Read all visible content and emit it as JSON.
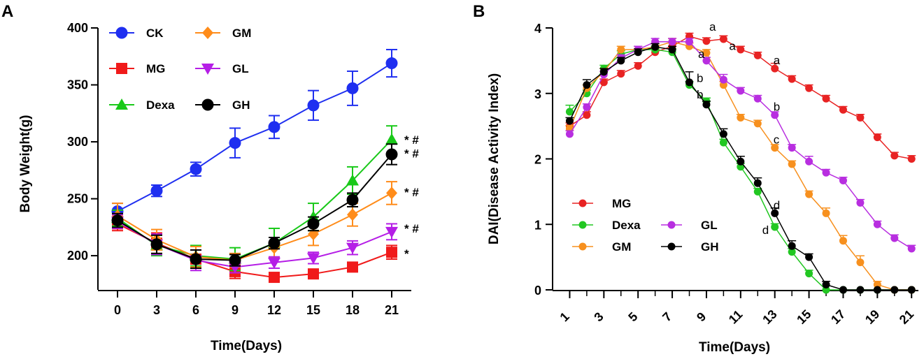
{
  "chart_data": [
    {
      "panel": "A",
      "type": "line",
      "xlabel": "Time(Days)",
      "ylabel": "Body Weight(g)",
      "x": [
        0,
        3,
        6,
        9,
        12,
        15,
        18,
        21
      ],
      "xticks": [
        0,
        3,
        6,
        9,
        12,
        15,
        18,
        21
      ],
      "xlim": [
        -1.5,
        22.5
      ],
      "ylim": [
        170,
        400
      ],
      "yticks": [
        200,
        250,
        300,
        350,
        400
      ],
      "legend": "top-left",
      "series": [
        {
          "name": "CK",
          "color": "#1f2ff0",
          "marker": "circle",
          "values": [
            239,
            257,
            276,
            299,
            313,
            332,
            347,
            369
          ],
          "errors": [
            7,
            5,
            6,
            13,
            10,
            13,
            15,
            12
          ]
        },
        {
          "name": "MG",
          "color": "#f01a1a",
          "marker": "square",
          "values": [
            228,
            211,
            197,
            186,
            181,
            184,
            190,
            203
          ],
          "errors": [
            6,
            9,
            8,
            6,
            4,
            4,
            4,
            6
          ]
        },
        {
          "name": "Dexa",
          "color": "#19c919",
          "marker": "triangle-up",
          "values": [
            233,
            209,
            200,
            197,
            211,
            234,
            266,
            302
          ],
          "errors": [
            7,
            9,
            9,
            10,
            13,
            12,
            12,
            12
          ]
        },
        {
          "name": "GM",
          "color": "#ff8c1a",
          "marker": "diamond",
          "values": [
            235,
            214,
            199,
            196,
            207,
            219,
            236,
            255
          ],
          "errors": [
            11,
            9,
            9,
            6,
            9,
            10,
            10,
            10
          ]
        },
        {
          "name": "GL",
          "color": "#b51ee6",
          "marker": "triangle-down",
          "values": [
            230,
            210,
            196,
            190,
            194,
            198,
            207,
            221
          ],
          "errors": [
            6,
            9,
            9,
            5,
            5,
            5,
            6,
            7
          ]
        },
        {
          "name": "GH",
          "color": "#000000",
          "marker": "circle",
          "values": [
            231,
            210,
            197,
            196,
            211,
            228,
            249,
            289
          ],
          "errors": [
            6,
            8,
            8,
            5,
            5,
            6,
            6,
            9
          ]
        }
      ],
      "annotations": [
        {
          "x": 21,
          "y": 302,
          "text": "* #"
        },
        {
          "x": 21,
          "y": 290,
          "text": "* #"
        },
        {
          "x": 21,
          "y": 256,
          "text": "* #"
        },
        {
          "x": 21,
          "y": 224,
          "text": "* #"
        },
        {
          "x": 21,
          "y": 202,
          "text": "*"
        }
      ]
    },
    {
      "panel": "B",
      "type": "line",
      "xlabel": "Time(Days)",
      "ylabel": "DAI(Disease Activity Index)",
      "x": [
        1,
        2,
        3,
        4,
        5,
        6,
        7,
        8,
        9,
        10,
        11,
        12,
        13,
        14,
        15,
        16,
        17,
        18,
        19,
        20,
        21
      ],
      "xticks": [
        1,
        3,
        5,
        7,
        9,
        11,
        13,
        15,
        17,
        19,
        21
      ],
      "xlim": [
        0,
        21.4
      ],
      "ylim": [
        0,
        4
      ],
      "yticks": [
        0,
        1,
        2,
        3,
        4
      ],
      "legend": "bottom-left",
      "series": [
        {
          "name": "MG",
          "color": "#e82323",
          "values": [
            2.5,
            2.67,
            3.17,
            3.3,
            3.42,
            3.63,
            3.72,
            3.87,
            3.8,
            3.83,
            3.67,
            3.58,
            3.38,
            3.22,
            3.08,
            2.92,
            2.75,
            2.63,
            2.33,
            2.05,
            2.0
          ],
          "errors": [
            0.05,
            0.05,
            0.05,
            0.05,
            0.05,
            0.05,
            0.05,
            0.05,
            0.05,
            0.05,
            0.05,
            0.05,
            0.08,
            0.05,
            0.05,
            0.05,
            0.05,
            0.05,
            0.05,
            0.05,
            0.05
          ]
        },
        {
          "name": "Dexa",
          "color": "#22c722",
          "values": [
            2.72,
            3.0,
            3.38,
            3.6,
            3.67,
            3.67,
            3.63,
            3.13,
            2.88,
            2.25,
            1.88,
            1.5,
            0.96,
            0.58,
            0.25,
            0.0,
            0.0,
            0.0,
            0.0,
            0.0,
            0.0
          ],
          "errors": [
            0.1,
            0.05,
            0.05,
            0.05,
            0.05,
            0.05,
            0.05,
            0.05,
            0.05,
            0.05,
            0.05,
            0.05,
            0.05,
            0.05,
            0.05,
            0.0,
            0.0,
            0.0,
            0.0,
            0.0,
            0.0
          ]
        },
        {
          "name": "GM",
          "color": "#f7901e",
          "values": [
            2.46,
            3.08,
            3.33,
            3.67,
            3.67,
            3.71,
            3.79,
            3.72,
            3.62,
            3.13,
            2.63,
            2.54,
            2.17,
            1.92,
            1.46,
            1.17,
            0.75,
            0.42,
            0.08,
            0.0,
            0.0
          ],
          "errors": [
            0.05,
            0.05,
            0.05,
            0.05,
            0.05,
            0.05,
            0.05,
            0.05,
            0.05,
            0.05,
            0.05,
            0.05,
            0.05,
            0.05,
            0.05,
            0.08,
            0.08,
            0.1,
            0.05,
            0.0,
            0.0
          ]
        },
        {
          "name": "GL",
          "color": "#b82ee0",
          "values": [
            2.38,
            2.79,
            3.29,
            3.54,
            3.67,
            3.79,
            3.79,
            3.79,
            3.5,
            3.21,
            3.04,
            2.92,
            2.67,
            2.17,
            1.96,
            1.79,
            1.67,
            1.33,
            1.0,
            0.79,
            0.63
          ],
          "errors": [
            0.05,
            0.05,
            0.05,
            0.05,
            0.05,
            0.05,
            0.05,
            0.05,
            0.05,
            0.08,
            0.05,
            0.05,
            0.05,
            0.05,
            0.08,
            0.05,
            0.05,
            0.05,
            0.05,
            0.05,
            0.05
          ]
        },
        {
          "name": "GH",
          "color": "#000000",
          "values": [
            2.58,
            3.13,
            3.33,
            3.5,
            3.63,
            3.71,
            3.67,
            3.17,
            2.83,
            2.38,
            1.96,
            1.63,
            1.17,
            0.67,
            0.5,
            0.08,
            0.0,
            0.0,
            0.0,
            0.0,
            0.0
          ],
          "errors": [
            0.05,
            0.08,
            0.05,
            0.05,
            0.05,
            0.05,
            0.05,
            0.16,
            0.05,
            0.08,
            0.08,
            0.08,
            0.08,
            0.08,
            0.05,
            0.05,
            0.0,
            0.0,
            0.0,
            0.0,
            0.0
          ]
        }
      ],
      "annotations": [
        {
          "x": 9,
          "y": 3.87,
          "text": "a"
        },
        {
          "x": 10,
          "y": 3.62,
          "text": "a"
        },
        {
          "x": 9,
          "y": 3.5,
          "text": "a"
        },
        {
          "x": 13,
          "y": 3.38,
          "text": "a"
        },
        {
          "x": 9,
          "y": 3.13,
          "text": "b"
        },
        {
          "x": 9,
          "y": 2.88,
          "text": "b"
        },
        {
          "x": 13,
          "y": 2.67,
          "text": "b"
        },
        {
          "x": 13,
          "y": 2.17,
          "text": "c"
        },
        {
          "x": 13,
          "y": 1.17,
          "text": "d"
        },
        {
          "x": 13,
          "y": 0.96,
          "text": "d"
        }
      ]
    }
  ],
  "panels": {
    "a_label": "A",
    "b_label": "B"
  }
}
